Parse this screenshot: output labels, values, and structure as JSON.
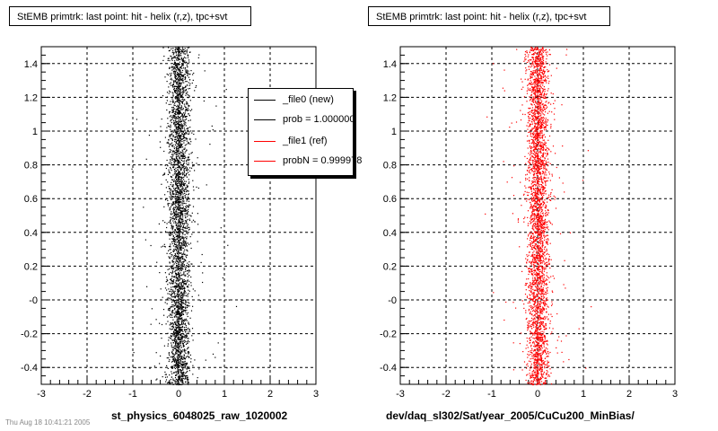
{
  "chart_data": [
    {
      "type": "scatter",
      "title": "StEMB primtrk: last point: hit - helix (r,z), tpc+svt",
      "xlabel": "st_physics_6048025_raw_1020002",
      "ylabel": "",
      "xlim": [
        -3,
        3
      ],
      "ylim": [
        -0.5,
        1.5
      ],
      "x_ticks": [
        "-3",
        "-2",
        "-1",
        "0",
        "1",
        "2",
        "3"
      ],
      "y_ticks": [
        "-0.4",
        "-0.2",
        "-0",
        "0.2",
        "0.4",
        "0.6",
        "0.8",
        "1",
        "1.2",
        "1.4"
      ],
      "grid": true,
      "series": [
        {
          "name": "_file0 (new)",
          "color": "#000000",
          "x_center": 0.0,
          "x_width": 0.12,
          "y_range": [
            -0.5,
            1.5
          ]
        }
      ],
      "legend": {
        "placement": "top-right",
        "entries": [
          {
            "label": "_file0 (new)",
            "color": "#000000"
          },
          {
            "label": "prob = 1.000000",
            "color": "#000000"
          },
          {
            "label": "_file1 (ref)",
            "color": "#ff0000"
          },
          {
            "label": "probN = 0.999978",
            "color": "#ff0000"
          }
        ]
      }
    },
    {
      "type": "scatter",
      "title": "StEMB primtrk: last point: hit - helix (r,z), tpc+svt",
      "xlabel": "dev/daq_sl302/Sat/year_2005/CuCu200_MinBias/",
      "ylabel": "",
      "xlim": [
        -3,
        3
      ],
      "ylim": [
        -0.5,
        1.5
      ],
      "x_ticks": [
        "-3",
        "-2",
        "-1",
        "0",
        "1",
        "2",
        "3"
      ],
      "y_ticks": [
        "-0.4",
        "-0.2",
        "-0",
        "0.2",
        "0.4",
        "0.6",
        "0.8",
        "1",
        "1.2",
        "1.4"
      ],
      "grid": true,
      "series": [
        {
          "name": "_file1 (ref)",
          "color": "#ff0000",
          "x_center": 0.0,
          "x_width": 0.12,
          "y_range": [
            -0.5,
            1.5
          ]
        }
      ]
    }
  ],
  "footer_stamp": "Thu Aug 18 10:41:21 2005"
}
